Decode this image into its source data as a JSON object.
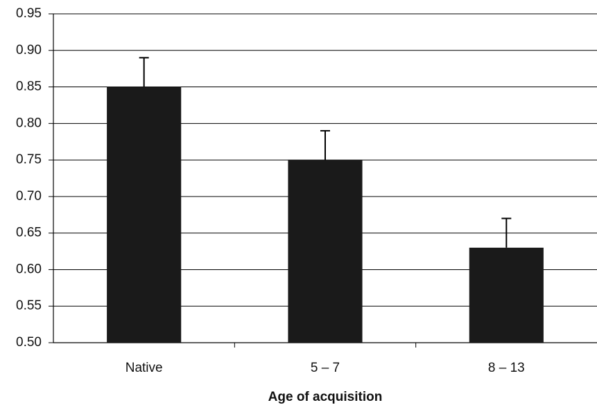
{
  "chart_data": {
    "type": "bar",
    "x_label": "Age of acquisition",
    "categories": [
      "Native",
      "5 – 7",
      "8 – 13"
    ],
    "values": [
      0.85,
      0.75,
      0.63
    ],
    "errors": [
      0.04,
      0.04,
      0.04
    ],
    "color": "#1a1a1a",
    "ylim": [
      0.5,
      0.95
    ],
    "yticks": [
      {
        "value": 0.5,
        "label": "0.50"
      },
      0.55,
      {
        "value": 0.6,
        "label": "0.60"
      },
      0.65,
      {
        "value": 0.7,
        "label": "0.70"
      },
      0.75,
      {
        "value": 0.8,
        "label": "0.80"
      },
      0.85,
      {
        "value": 0.9,
        "label": "0.90"
      },
      0.95
    ],
    "grid": true
  }
}
